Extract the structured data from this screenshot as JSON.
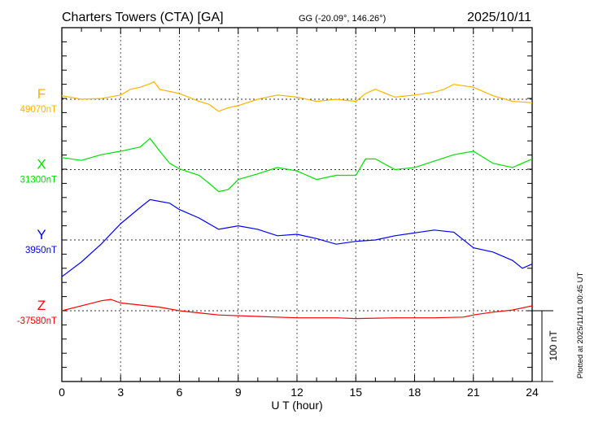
{
  "chart_data": {
    "type": "line",
    "title": "Charters Towers (CTA)  [GA]",
    "subtitle": "GG (-20.09°, 146.26°)",
    "date": "2025/10/11",
    "xlabel": "U T (hour)",
    "xlim": [
      0,
      24
    ],
    "xticks": [
      "0",
      "3",
      "6",
      "9",
      "12",
      "15",
      "18",
      "21",
      "24"
    ],
    "grid": true,
    "scale_bar_label": "100 nT",
    "scale_bar_nT": 100,
    "plotted_note": "Plotted at 2025/11/11 00:45 UT",
    "series": [
      {
        "name": "F",
        "baseline_label": "49070nT",
        "color": "#ffb400",
        "points": [
          [
            0,
            5
          ],
          [
            1,
            0
          ],
          [
            2,
            1
          ],
          [
            3,
            6
          ],
          [
            3.5,
            14
          ],
          [
            4,
            17
          ],
          [
            4.5,
            22
          ],
          [
            4.7,
            25
          ],
          [
            5,
            14
          ],
          [
            6,
            8
          ],
          [
            7,
            -3
          ],
          [
            7.5,
            -7
          ],
          [
            8,
            -17
          ],
          [
            8.5,
            -12
          ],
          [
            9,
            -9
          ],
          [
            10,
            0
          ],
          [
            11,
            6
          ],
          [
            12,
            3
          ],
          [
            13,
            -3
          ],
          [
            14,
            0
          ],
          [
            15,
            -3
          ],
          [
            15.5,
            8
          ],
          [
            16,
            14
          ],
          [
            17,
            3
          ],
          [
            18,
            6
          ],
          [
            19,
            10
          ],
          [
            19.5,
            14
          ],
          [
            20,
            21
          ],
          [
            21,
            17
          ],
          [
            22,
            5
          ],
          [
            23,
            -3
          ],
          [
            24,
            -5
          ]
        ]
      },
      {
        "name": "X",
        "baseline_label": "31300nT",
        "color": "#00e000",
        "points": [
          [
            0,
            17
          ],
          [
            1,
            13
          ],
          [
            2,
            21
          ],
          [
            3,
            26
          ],
          [
            4,
            32
          ],
          [
            4.5,
            44
          ],
          [
            5,
            26
          ],
          [
            5.5,
            9
          ],
          [
            6,
            1
          ],
          [
            7,
            -8
          ],
          [
            7.5,
            -19
          ],
          [
            8,
            -31
          ],
          [
            8.5,
            -28
          ],
          [
            9,
            -14
          ],
          [
            10,
            -6
          ],
          [
            11,
            3
          ],
          [
            12,
            -2
          ],
          [
            13,
            -14
          ],
          [
            14,
            -8
          ],
          [
            15,
            -8
          ],
          [
            15.5,
            15
          ],
          [
            16,
            15
          ],
          [
            17,
            0
          ],
          [
            18,
            3
          ],
          [
            19,
            12
          ],
          [
            20,
            21
          ],
          [
            21,
            26
          ],
          [
            22,
            9
          ],
          [
            23,
            3
          ],
          [
            24,
            15
          ]
        ]
      },
      {
        "name": "Y",
        "baseline_label": "3950nT",
        "color": "#0000ff",
        "points": [
          [
            0,
            -52
          ],
          [
            1,
            -31
          ],
          [
            2,
            -6
          ],
          [
            3,
            23
          ],
          [
            4,
            46
          ],
          [
            4.5,
            57
          ],
          [
            5.5,
            52
          ],
          [
            6,
            43
          ],
          [
            7,
            31
          ],
          [
            8,
            15
          ],
          [
            9,
            20
          ],
          [
            10,
            15
          ],
          [
            11,
            6
          ],
          [
            12,
            8
          ],
          [
            13,
            2
          ],
          [
            14,
            -6
          ],
          [
            15,
            -2
          ],
          [
            16,
            0
          ],
          [
            17,
            6
          ],
          [
            18,
            10
          ],
          [
            19,
            14
          ],
          [
            20,
            11
          ],
          [
            21,
            -11
          ],
          [
            22,
            -17
          ],
          [
            23,
            -29
          ],
          [
            23.5,
            -40
          ],
          [
            24,
            -34
          ]
        ]
      },
      {
        "name": "Z",
        "baseline_label": "-37580nT",
        "color": "#ff0000",
        "points": [
          [
            0,
            0
          ],
          [
            1,
            7
          ],
          [
            2,
            14
          ],
          [
            2.5,
            16
          ],
          [
            3,
            11
          ],
          [
            4,
            8
          ],
          [
            5,
            5
          ],
          [
            6,
            0
          ],
          [
            7,
            -3
          ],
          [
            8,
            -6
          ],
          [
            10,
            -8
          ],
          [
            12,
            -10
          ],
          [
            14,
            -10
          ],
          [
            15,
            -11
          ],
          [
            17,
            -10
          ],
          [
            19,
            -10
          ],
          [
            20.5,
            -9
          ],
          [
            21,
            -6
          ],
          [
            22,
            -2
          ],
          [
            23,
            1
          ],
          [
            24,
            7
          ]
        ]
      }
    ]
  }
}
